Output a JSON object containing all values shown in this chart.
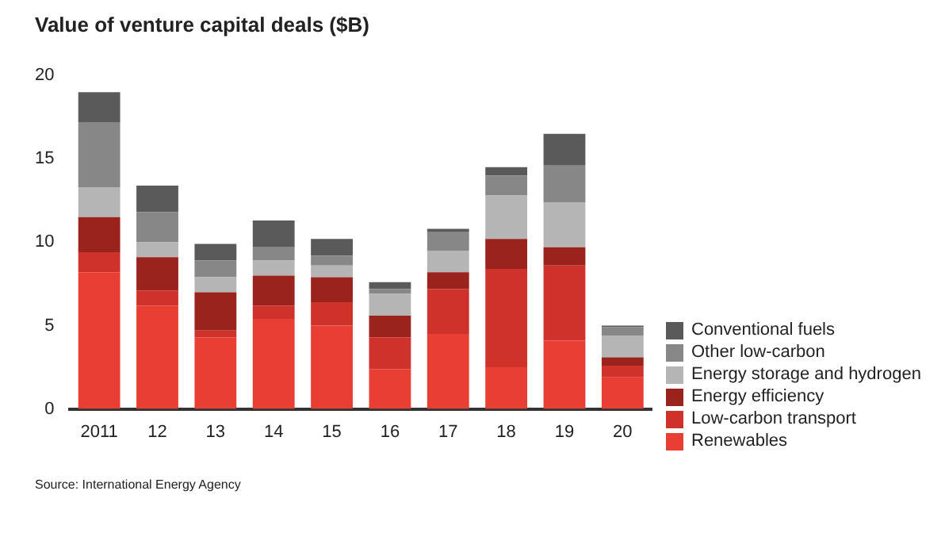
{
  "chart_data": {
    "type": "bar",
    "title": "Value of venture capital deals ($B)",
    "stacked": true,
    "legend": "right",
    "grid": false,
    "categories": [
      "2011",
      "12",
      "13",
      "14",
      "15",
      "16",
      "17",
      "18",
      "19",
      "20"
    ],
    "series": [
      {
        "name": "Renewables",
        "color": "#e83e33",
        "values": [
          8.2,
          6.2,
          4.3,
          5.4,
          5.0,
          2.4,
          4.5,
          2.5,
          4.1,
          1.9
        ]
      },
      {
        "name": "Low-carbon transport",
        "color": "#cf322b",
        "values": [
          1.2,
          0.9,
          0.4,
          0.8,
          1.4,
          1.9,
          2.7,
          5.9,
          4.5,
          0.7
        ]
      },
      {
        "name": "Energy efficiency",
        "color": "#9b231d",
        "values": [
          2.1,
          2.0,
          2.3,
          1.8,
          1.5,
          1.3,
          1.0,
          1.8,
          1.1,
          0.5
        ]
      },
      {
        "name": "Energy storage and hydrogen",
        "color": "#b5b5b5",
        "values": [
          1.8,
          0.9,
          0.9,
          0.9,
          0.7,
          1.3,
          1.3,
          2.6,
          2.7,
          1.3
        ]
      },
      {
        "name": "Other low-carbon",
        "color": "#878787",
        "values": [
          3.9,
          1.8,
          1.0,
          0.8,
          0.6,
          0.3,
          1.1,
          1.2,
          2.2,
          0.5
        ]
      },
      {
        "name": "Conventional fuels",
        "color": "#5a5a5a",
        "values": [
          1.8,
          1.6,
          1.0,
          1.6,
          1.0,
          0.4,
          0.2,
          0.5,
          1.9,
          0.1
        ]
      }
    ],
    "ylim": [
      0,
      20
    ],
    "yticks": [
      0,
      5,
      10,
      15,
      20
    ],
    "annotations": [
      "Source: International Energy Agency"
    ]
  }
}
